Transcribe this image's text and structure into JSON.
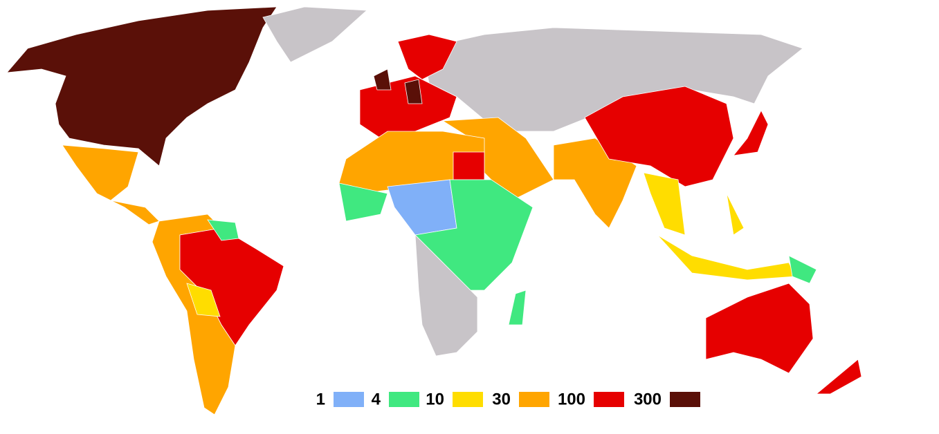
{
  "legend": {
    "labels": [
      1,
      4,
      10,
      30,
      100,
      300
    ],
    "colors": [
      "#80b0f8",
      "#40e880",
      "#ffdd00",
      "#ffa500",
      "#e60000",
      "#5a1008"
    ],
    "no_data_color": "#c8c4c8"
  }
}
